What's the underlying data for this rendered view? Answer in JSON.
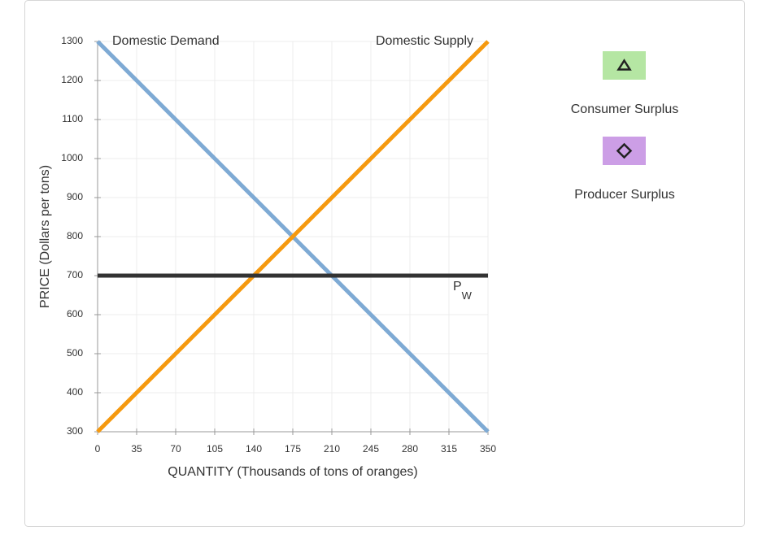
{
  "chart_data": {
    "type": "line",
    "x_label": "QUANTITY (Thousands of tons of oranges)",
    "y_label": "PRICE (Dollars per tons)",
    "x": [
      0,
      350
    ],
    "series": [
      {
        "name": "Domestic Demand",
        "color": "#7eaad4",
        "values": [
          1300,
          300
        ]
      },
      {
        "name": "Domestic Supply",
        "color": "#f5990f",
        "values": [
          300,
          1300
        ]
      },
      {
        "name": "P",
        "subscript": "W",
        "color": "#333333",
        "values": [
          700,
          700
        ]
      }
    ],
    "xlim": [
      0,
      350
    ],
    "xticks": [
      0,
      35,
      70,
      105,
      140,
      175,
      210,
      245,
      280,
      315,
      350
    ],
    "ylim": [
      300,
      1300
    ],
    "yticks": [
      300,
      400,
      500,
      600,
      700,
      800,
      900,
      1000,
      1100,
      1200,
      1300
    ],
    "grid": true,
    "legend": [
      {
        "label": "Consumer Surplus",
        "color": "#b5e6a3",
        "symbol": "triangle"
      },
      {
        "label": "Producer Surplus",
        "color": "#cc9ee6",
        "symbol": "diamond"
      }
    ]
  }
}
